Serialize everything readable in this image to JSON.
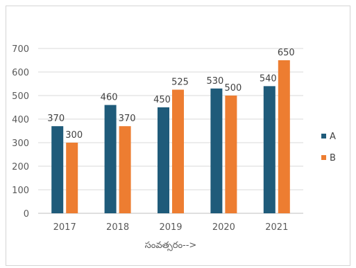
{
  "chart_data": {
    "type": "bar",
    "categories": [
      "2017",
      "2018",
      "2019",
      "2020",
      "2021"
    ],
    "series": [
      {
        "name": "A",
        "values": [
          370,
          460,
          450,
          530,
          540
        ],
        "color": "#1f5b7a"
      },
      {
        "name": "B",
        "values": [
          300,
          370,
          525,
          500,
          650
        ],
        "color": "#ed7d31"
      }
    ],
    "xlabel": "సంవత్సరం-->",
    "ylabel": "",
    "ylim": [
      0,
      700
    ],
    "yticks": [
      0,
      100,
      200,
      300,
      400,
      500,
      600,
      700
    ],
    "grid": true,
    "legend": "right",
    "data_labels": true
  }
}
